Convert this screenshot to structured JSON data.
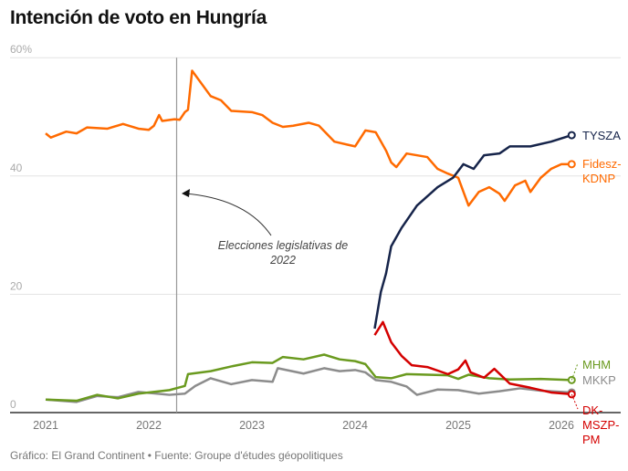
{
  "title": "Intención de voto en Hungría",
  "footer": "Gráfico: El Grand Continent • Fuente: Groupe d'études géopolitiques",
  "chart_data": {
    "type": "line",
    "title": "Intención de voto en Hungría",
    "xlim": [
      2021,
      2026.15
    ],
    "ylim": [
      0,
      60
    ],
    "x_ticks": [
      "2021",
      "2022",
      "2023",
      "2024",
      "2025",
      "2026"
    ],
    "y_ticks": [
      {
        "v": 0,
        "label": "0"
      },
      {
        "v": 20,
        "label": "20"
      },
      {
        "v": 40,
        "label": "40"
      },
      {
        "v": 60,
        "label": "60%"
      }
    ],
    "grid": true,
    "annotation": {
      "x": 2022.27,
      "text_lines": [
        "Elecciones legislativas de",
        "2022"
      ]
    },
    "series": [
      {
        "name": "Fidesz-KDNP",
        "label_lines": [
          "Fidesz-",
          "KDNP"
        ],
        "color": "#ff6a00",
        "points": [
          [
            2021,
            47.2
          ],
          [
            2021.05,
            46.5
          ],
          [
            2021.2,
            47.5
          ],
          [
            2021.3,
            47.2
          ],
          [
            2021.4,
            48.2
          ],
          [
            2021.6,
            48.0
          ],
          [
            2021.75,
            48.8
          ],
          [
            2021.9,
            48.0
          ],
          [
            2022.0,
            47.8
          ],
          [
            2022.05,
            48.5
          ],
          [
            2022.1,
            50.3
          ],
          [
            2022.13,
            49.3
          ],
          [
            2022.25,
            49.6
          ],
          [
            2022.3,
            49.5
          ],
          [
            2022.35,
            50.8
          ],
          [
            2022.38,
            51.2
          ],
          [
            2022.42,
            57.8
          ],
          [
            2022.6,
            53.5
          ],
          [
            2022.7,
            52.8
          ],
          [
            2022.8,
            51.0
          ],
          [
            2023.0,
            50.8
          ],
          [
            2023.1,
            50.3
          ],
          [
            2023.2,
            49.0
          ],
          [
            2023.3,
            48.3
          ],
          [
            2023.4,
            48.5
          ],
          [
            2023.55,
            49.0
          ],
          [
            2023.65,
            48.5
          ],
          [
            2023.8,
            45.8
          ],
          [
            2024.0,
            45.0
          ],
          [
            2024.1,
            47.7
          ],
          [
            2024.2,
            47.4
          ],
          [
            2024.3,
            44.3
          ],
          [
            2024.35,
            42.3
          ],
          [
            2024.4,
            41.5
          ],
          [
            2024.5,
            43.8
          ],
          [
            2024.7,
            43.2
          ],
          [
            2024.8,
            41.2
          ],
          [
            2024.9,
            40.4
          ],
          [
            2025.0,
            39.7
          ],
          [
            2025.1,
            35.0
          ],
          [
            2025.2,
            37.3
          ],
          [
            2025.3,
            38.1
          ],
          [
            2025.4,
            37.0
          ],
          [
            2025.45,
            35.8
          ],
          [
            2025.55,
            38.4
          ],
          [
            2025.65,
            39.2
          ],
          [
            2025.7,
            37.3
          ],
          [
            2025.8,
            39.7
          ],
          [
            2025.9,
            41.2
          ],
          [
            2026.0,
            42.0
          ],
          [
            2026.1,
            42.0
          ]
        ]
      },
      {
        "name": "TYSZA",
        "label_lines": [
          "TYSZA"
        ],
        "color": "#16244a",
        "points": [
          [
            2024.19,
            14.2
          ],
          [
            2024.25,
            20.4
          ],
          [
            2024.3,
            23.5
          ],
          [
            2024.35,
            28.1
          ],
          [
            2024.45,
            31.2
          ],
          [
            2024.6,
            35.0
          ],
          [
            2024.8,
            38.1
          ],
          [
            2024.95,
            39.7
          ],
          [
            2025.05,
            42.0
          ],
          [
            2025.15,
            41.2
          ],
          [
            2025.25,
            43.5
          ],
          [
            2025.4,
            43.8
          ],
          [
            2025.5,
            45.0
          ],
          [
            2025.7,
            45.0
          ],
          [
            2025.9,
            45.8
          ],
          [
            2026.1,
            46.9
          ]
        ]
      },
      {
        "name": "DK-MSZP-PM",
        "label_lines": [
          "DK-",
          "MSZP-",
          "PM"
        ],
        "color": "#d40000",
        "points": [
          [
            2024.19,
            13.1
          ],
          [
            2024.27,
            15.3
          ],
          [
            2024.35,
            11.9
          ],
          [
            2024.45,
            9.6
          ],
          [
            2024.55,
            8.0
          ],
          [
            2024.7,
            7.7
          ],
          [
            2024.9,
            6.5
          ],
          [
            2025.0,
            7.3
          ],
          [
            2025.07,
            8.8
          ],
          [
            2025.12,
            6.8
          ],
          [
            2025.25,
            5.9
          ],
          [
            2025.35,
            7.4
          ],
          [
            2025.5,
            4.9
          ],
          [
            2025.7,
            4.2
          ],
          [
            2025.9,
            3.4
          ],
          [
            2026.1,
            3.1
          ]
        ]
      },
      {
        "name": "MHM",
        "label_lines": [
          "MHM"
        ],
        "color": "#6a9a1f",
        "points": [
          [
            2021,
            2.2
          ],
          [
            2021.3,
            2.0
          ],
          [
            2021.5,
            3.0
          ],
          [
            2021.7,
            2.4
          ],
          [
            2021.9,
            3.2
          ],
          [
            2022.2,
            3.8
          ],
          [
            2022.35,
            4.5
          ],
          [
            2022.38,
            6.5
          ],
          [
            2022.6,
            7.0
          ],
          [
            2022.8,
            7.8
          ],
          [
            2023.0,
            8.5
          ],
          [
            2023.2,
            8.4
          ],
          [
            2023.3,
            9.4
          ],
          [
            2023.5,
            9.0
          ],
          [
            2023.7,
            9.8
          ],
          [
            2023.85,
            9.0
          ],
          [
            2024.0,
            8.7
          ],
          [
            2024.1,
            8.2
          ],
          [
            2024.2,
            6.0
          ],
          [
            2024.35,
            5.8
          ],
          [
            2024.5,
            6.5
          ],
          [
            2024.7,
            6.4
          ],
          [
            2024.9,
            6.3
          ],
          [
            2025.0,
            5.7
          ],
          [
            2025.1,
            6.4
          ],
          [
            2025.3,
            5.8
          ],
          [
            2025.5,
            5.6
          ],
          [
            2025.8,
            5.7
          ],
          [
            2026.1,
            5.5
          ]
        ]
      },
      {
        "name": "MKKP",
        "label_lines": [
          "MKKP"
        ],
        "color": "#8c8c8c",
        "points": [
          [
            2021,
            2.2
          ],
          [
            2021.3,
            1.8
          ],
          [
            2021.5,
            2.8
          ],
          [
            2021.7,
            2.6
          ],
          [
            2021.9,
            3.5
          ],
          [
            2022.2,
            3.0
          ],
          [
            2022.35,
            3.2
          ],
          [
            2022.45,
            4.5
          ],
          [
            2022.6,
            5.8
          ],
          [
            2022.8,
            4.8
          ],
          [
            2023.0,
            5.5
          ],
          [
            2023.2,
            5.2
          ],
          [
            2023.25,
            7.5
          ],
          [
            2023.5,
            6.6
          ],
          [
            2023.7,
            7.5
          ],
          [
            2023.85,
            7.0
          ],
          [
            2024.0,
            7.2
          ],
          [
            2024.1,
            6.8
          ],
          [
            2024.2,
            5.5
          ],
          [
            2024.35,
            5.2
          ],
          [
            2024.5,
            4.4
          ],
          [
            2024.6,
            3.0
          ],
          [
            2024.8,
            3.9
          ],
          [
            2025.0,
            3.8
          ],
          [
            2025.2,
            3.2
          ],
          [
            2025.4,
            3.6
          ],
          [
            2025.6,
            4.1
          ],
          [
            2025.8,
            3.7
          ],
          [
            2026.1,
            3.4
          ]
        ]
      }
    ]
  }
}
